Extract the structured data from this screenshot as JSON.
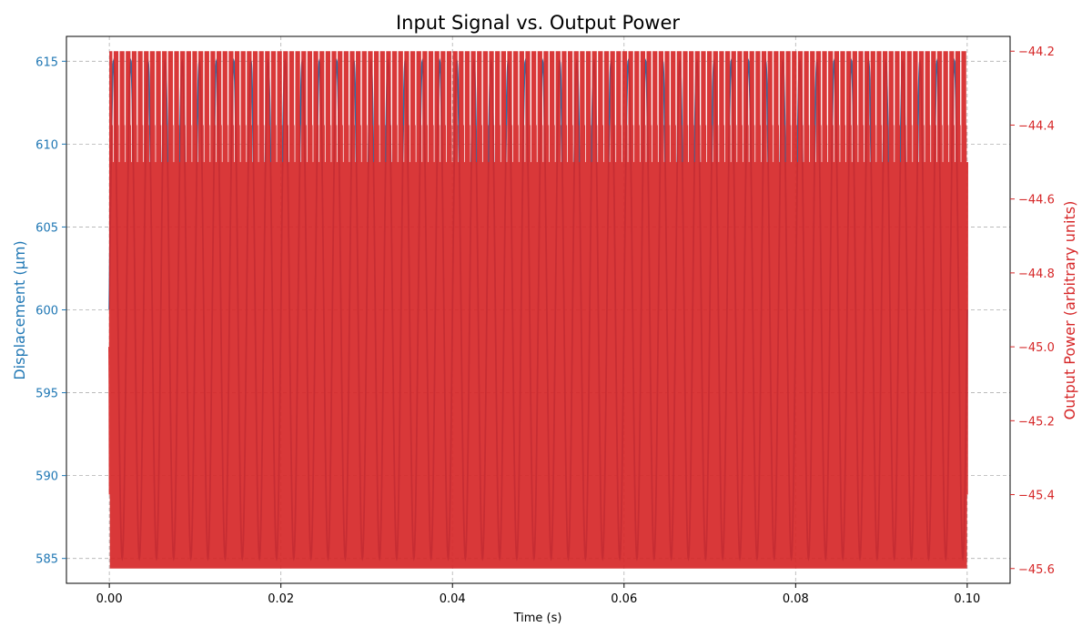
{
  "chart_data": {
    "type": "line",
    "title": "Input Signal vs. Output Power",
    "xlabel": "Time (s)",
    "xlim": [
      -0.005,
      0.105
    ],
    "xticks": [
      0.0,
      0.02,
      0.04,
      0.06,
      0.08,
      0.1
    ],
    "xtick_labels": [
      "0.00",
      "0.02",
      "0.04",
      "0.06",
      "0.08",
      "0.10"
    ],
    "grid": true,
    "left_axis": {
      "label": "Displacement (µm)",
      "color": "#1f77b4",
      "ylim": [
        583.5,
        616.5
      ],
      "ticks": [
        585,
        590,
        595,
        600,
        605,
        610,
        615
      ],
      "tick_labels": [
        "585",
        "590",
        "595",
        "600",
        "605",
        "610",
        "615"
      ]
    },
    "right_axis": {
      "label": "Output Power (arbitrary units)",
      "color": "#d62728",
      "ylim": [
        -45.64,
        -44.16
      ],
      "ticks": [
        -45.6,
        -45.4,
        -45.2,
        -45.0,
        -44.8,
        -44.6,
        -44.4,
        -44.2
      ],
      "tick_labels": [
        "−45.6",
        "−45.4",
        "−45.2",
        "−45.0",
        "−44.8",
        "−44.6",
        "−44.4",
        "−44.2"
      ]
    },
    "series": [
      {
        "axis": "left",
        "color": "#1f77b4",
        "function": "sine",
        "offset": 600,
        "amplitude": 15,
        "frequency_hz": 500,
        "x_start": 0.0,
        "x_end": 0.1
      },
      {
        "axis": "right",
        "color": "#d62728",
        "function": "response",
        "x_start": 0.0,
        "x_end": 0.1,
        "min": -45.6,
        "max": -44.2,
        "start_value": -45.0,
        "drive_frequency_hz": 500
      }
    ]
  }
}
